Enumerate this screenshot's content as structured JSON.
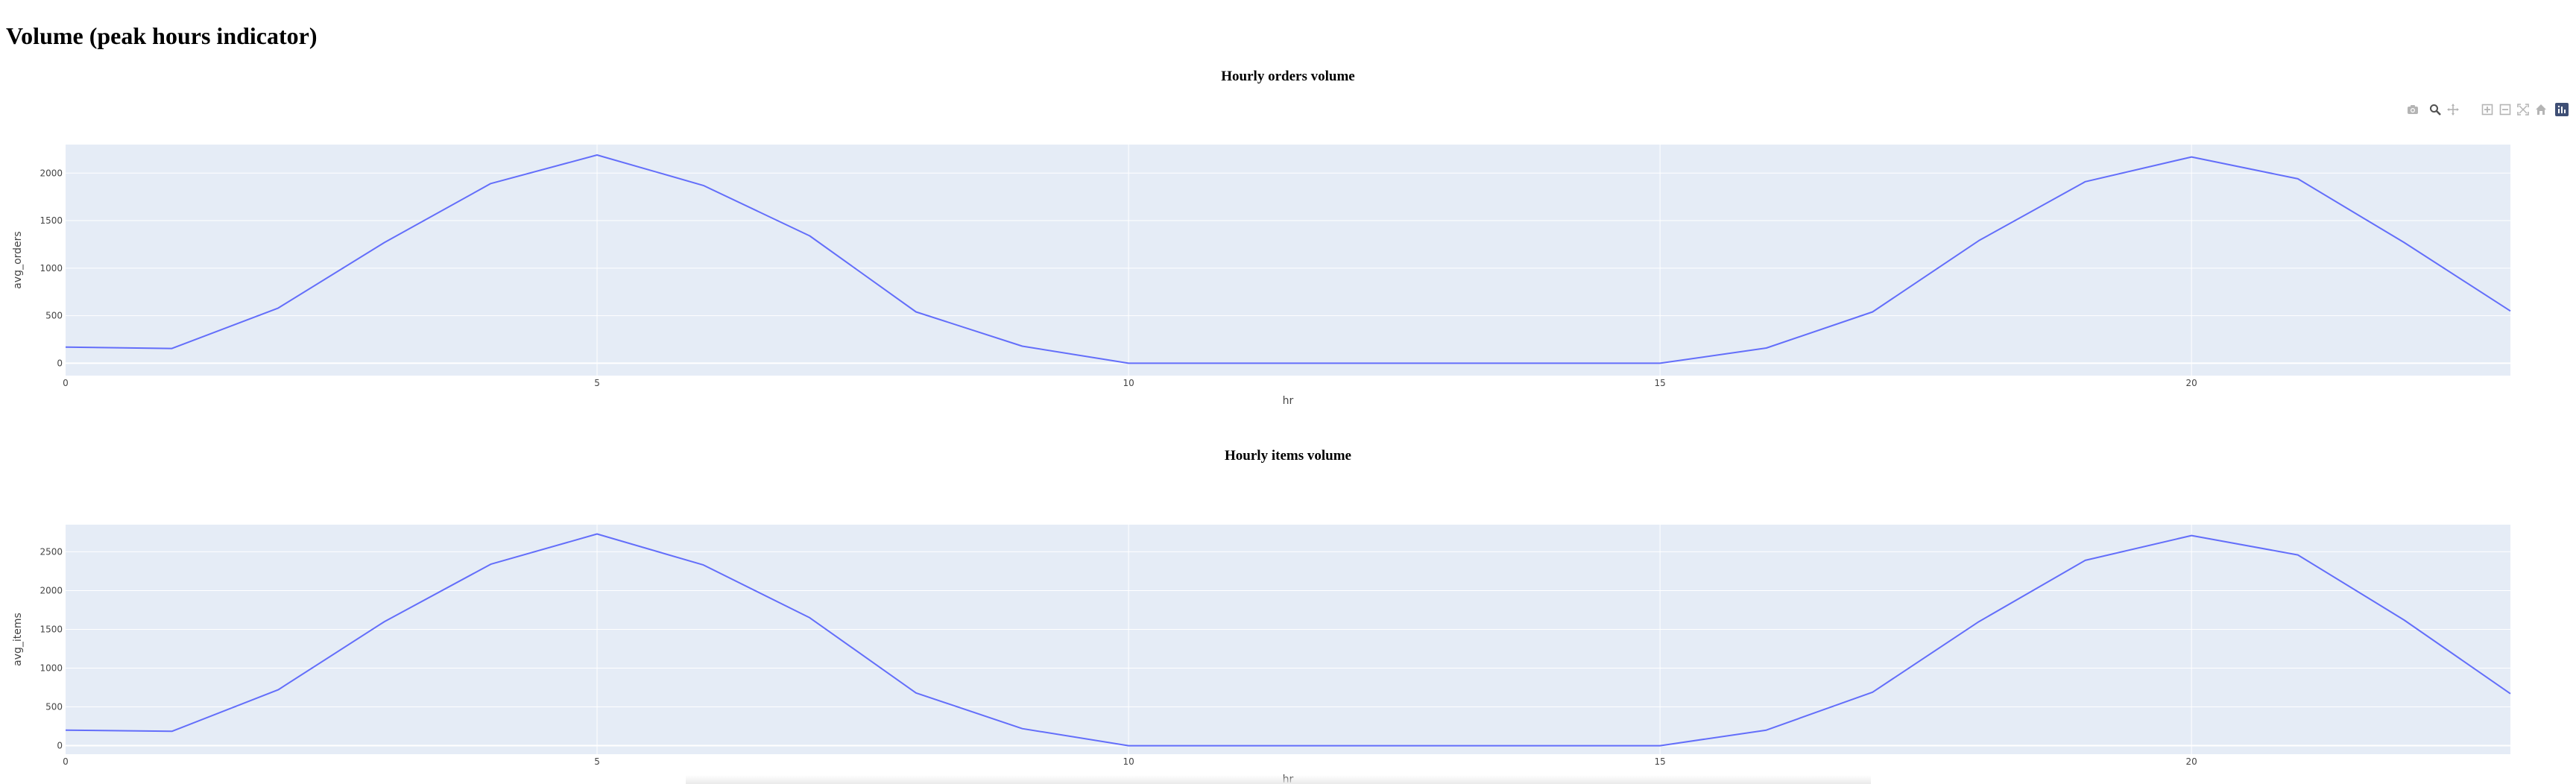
{
  "page": {
    "title": "Volume (peak hours indicator)"
  },
  "modebar": {
    "buttons": [
      {
        "name": "camera-icon",
        "title": "Download plot as a png"
      },
      {
        "name": "zoom-icon",
        "title": "Zoom"
      },
      {
        "name": "pan-icon",
        "title": "Pan"
      },
      {
        "name": "zoom-in-icon",
        "title": "Zoom in"
      },
      {
        "name": "zoom-out-icon",
        "title": "Zoom out"
      },
      {
        "name": "autoscale-icon",
        "title": "Autoscale"
      },
      {
        "name": "reset-axes-icon",
        "title": "Reset axes"
      },
      {
        "name": "plotly-logo-icon",
        "title": "Produced with Plotly"
      }
    ]
  },
  "colors": {
    "plot_bg": "#e5ecf6",
    "grid": "#ffffff",
    "line": "#636efa",
    "text": "#444444"
  },
  "chart_data": [
    {
      "type": "line",
      "title": "Hourly orders volume",
      "xlabel": "hr",
      "ylabel": "avg_orders",
      "xlim": [
        0,
        23
      ],
      "ylim": [
        -130,
        2300
      ],
      "xticks": [
        0,
        5,
        10,
        15,
        20
      ],
      "yticks": [
        0,
        500,
        1000,
        1500,
        2000
      ],
      "grid": true,
      "x": [
        0,
        1,
        2,
        3,
        4,
        5,
        6,
        7,
        8,
        9,
        10,
        11,
        12,
        13,
        14,
        15,
        16,
        17,
        18,
        19,
        20,
        21,
        22,
        23
      ],
      "series": [
        {
          "values": [
            170,
            155,
            580,
            1270,
            1890,
            2190,
            1870,
            1340,
            540,
            180,
            0,
            0,
            0,
            0,
            0,
            0,
            160,
            540,
            1290,
            1910,
            2170,
            1940,
            1270,
            550
          ]
        }
      ]
    },
    {
      "type": "line",
      "title": "Hourly items volume",
      "xlabel": "hr",
      "ylabel": "avg_items",
      "xlim": [
        0,
        23
      ],
      "ylim": [
        -110,
        2850
      ],
      "xticks": [
        0,
        5,
        10,
        15,
        20
      ],
      "yticks": [
        0,
        500,
        1000,
        1500,
        2000,
        2500
      ],
      "grid": true,
      "x": [
        0,
        1,
        2,
        3,
        4,
        5,
        6,
        7,
        8,
        9,
        10,
        11,
        12,
        13,
        14,
        15,
        16,
        17,
        18,
        19,
        20,
        21,
        22,
        23
      ],
      "series": [
        {
          "values": [
            200,
            185,
            720,
            1600,
            2340,
            2730,
            2330,
            1650,
            680,
            220,
            0,
            0,
            0,
            0,
            0,
            0,
            200,
            690,
            1600,
            2390,
            2710,
            2460,
            1620,
            670
          ]
        }
      ]
    }
  ]
}
